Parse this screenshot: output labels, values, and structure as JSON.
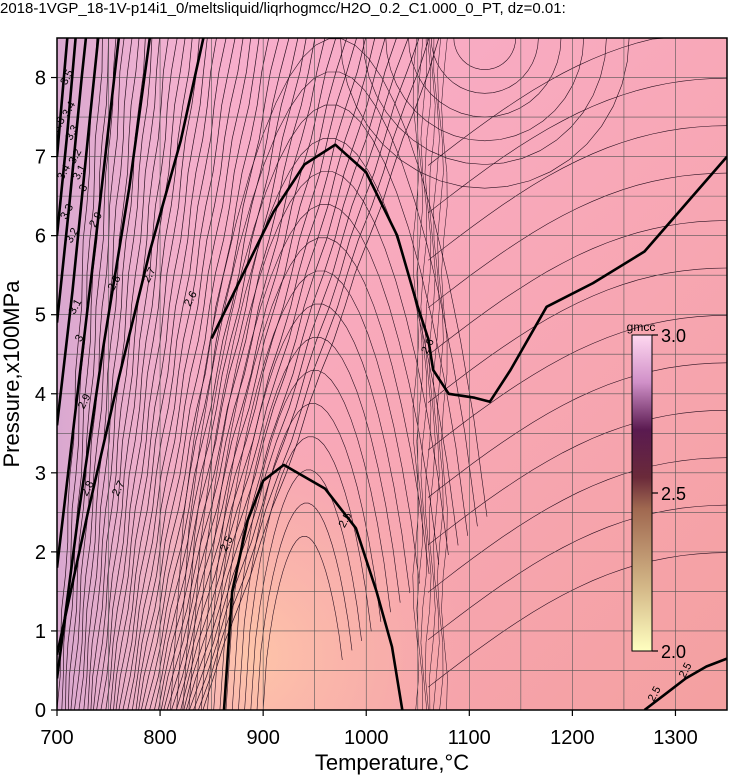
{
  "chart_data": {
    "type": "heatmap",
    "title": "2018-1VGP_18-1V-p14i1_0/meltsliquid/liqrhogmcc/H2O_0.2_C1.000_0_PT, dz=0.01:",
    "xlabel": "Temperature,°C",
    "ylabel": "Pressure,x100MPa",
    "xlim": [
      700,
      1350
    ],
    "ylim": [
      0,
      8.5
    ],
    "x_ticks": [
      700,
      800,
      900,
      1000,
      1100,
      1200,
      1300
    ],
    "y_ticks": [
      0,
      1,
      2,
      3,
      4,
      5,
      6,
      7,
      8
    ],
    "x_tick_labels": [
      "700",
      "800",
      "900",
      "1000",
      "1100",
      "1200",
      "1300"
    ],
    "y_tick_labels": [
      "0",
      "1",
      "2",
      "3",
      "4",
      "5",
      "6",
      "7",
      "8"
    ],
    "grid": true,
    "contour_interval": 0.01,
    "colorbar": {
      "label": "gmcc",
      "min": 2.0,
      "max": 3.0,
      "ticks": [
        2.0,
        2.5,
        3.0
      ],
      "tick_labels": [
        "2.0",
        "2.5",
        "3.0"
      ],
      "colors": [
        "#ffffc0",
        "#b08a60",
        "#5a1a30",
        "#ffc0e8"
      ]
    },
    "bold_contours": [
      {
        "level": 2.5,
        "label": "2.5",
        "points": [
          [
            862,
            0
          ],
          [
            870,
            1.5
          ],
          [
            885,
            2.4
          ],
          [
            900,
            2.9
          ],
          [
            920,
            3.1
          ],
          [
            960,
            2.8
          ],
          [
            990,
            2.3
          ],
          [
            1010,
            1.5
          ],
          [
            1025,
            0.8
          ],
          [
            1035,
            0
          ]
        ]
      },
      {
        "level": 2.5,
        "label": "2.5",
        "points": [
          [
            1270,
            0
          ],
          [
            1290,
            0.2
          ],
          [
            1310,
            0.4
          ],
          [
            1330,
            0.55
          ],
          [
            1350,
            0.65
          ]
        ]
      },
      {
        "level": 2.6,
        "label": "2.6",
        "points": [
          [
            850,
            4.7
          ],
          [
            880,
            5.5
          ],
          [
            910,
            6.3
          ],
          [
            940,
            6.9
          ],
          [
            970,
            7.15
          ],
          [
            1000,
            6.8
          ],
          [
            1030,
            6.0
          ],
          [
            1050,
            5.1
          ],
          [
            1060,
            4.7
          ],
          [
            1065,
            4.3
          ],
          [
            1080,
            4.0
          ],
          [
            1105,
            3.95
          ],
          [
            1120,
            3.9
          ],
          [
            1140,
            4.3
          ],
          [
            1175,
            5.1
          ],
          [
            1220,
            5.4
          ],
          [
            1270,
            5.8
          ],
          [
            1310,
            6.4
          ],
          [
            1350,
            7.0
          ]
        ]
      },
      {
        "level": 2.7,
        "label": "2.7",
        "points": [
          [
            700,
            0.7
          ],
          [
            730,
            2.5
          ],
          [
            760,
            4.2
          ],
          [
            790,
            5.8
          ],
          [
            820,
            7.2
          ],
          [
            842,
            8.5
          ]
        ]
      },
      {
        "level": 2.8,
        "label": "2.8",
        "points": [
          [
            700,
            0.4
          ],
          [
            720,
            2.4
          ],
          [
            745,
            4.6
          ],
          [
            770,
            6.6
          ],
          [
            790,
            8.5
          ]
        ]
      },
      {
        "level": 2.9,
        "label": "2.9",
        "points": [
          [
            700,
            1.8
          ],
          [
            718,
            3.8
          ],
          [
            738,
            6.0
          ],
          [
            760,
            8.5
          ]
        ]
      },
      {
        "level": 3.0,
        "label": "3",
        "points": [
          [
            700,
            3.6
          ],
          [
            715,
            5.3
          ],
          [
            732,
            7.5
          ],
          [
            740,
            8.5
          ]
        ]
      },
      {
        "level": 3.1,
        "label": "3.1",
        "points": [
          [
            700,
            4.9
          ],
          [
            712,
            6.4
          ],
          [
            724,
            8.0
          ],
          [
            728,
            8.5
          ]
        ]
      },
      {
        "level": 3.2,
        "label": "3.2",
        "points": [
          [
            700,
            6.0
          ],
          [
            710,
            7.3
          ],
          [
            718,
            8.5
          ]
        ]
      },
      {
        "level": 3.3,
        "label": "3.3",
        "points": [
          [
            700,
            7.0
          ],
          [
            706,
            7.9
          ],
          [
            710,
            8.5
          ]
        ]
      }
    ],
    "contour_labels": [
      {
        "text": "3.5",
        "x": 710,
        "y": 8.0
      },
      {
        "text": "3.5",
        "x": 702,
        "y": 7.4
      },
      {
        "text": "3.4",
        "x": 712,
        "y": 7.6
      },
      {
        "text": "3.3",
        "x": 715,
        "y": 7.3
      },
      {
        "text": "3.2",
        "x": 718,
        "y": 7.0
      },
      {
        "text": "3.1",
        "x": 722,
        "y": 6.8
      },
      {
        "text": "3",
        "x": 726,
        "y": 6.6
      },
      {
        "text": "3.4",
        "x": 707,
        "y": 6.8
      },
      {
        "text": "3.3",
        "x": 710,
        "y": 6.3
      },
      {
        "text": "3.2",
        "x": 715,
        "y": 6.0
      },
      {
        "text": "3.1",
        "x": 718,
        "y": 5.1
      },
      {
        "text": "3",
        "x": 722,
        "y": 4.7
      },
      {
        "text": "2.9",
        "x": 738,
        "y": 6.2
      },
      {
        "text": "2.8",
        "x": 756,
        "y": 5.4
      },
      {
        "text": "2.7",
        "x": 790,
        "y": 5.5
      },
      {
        "text": "2.9",
        "x": 727,
        "y": 3.9
      },
      {
        "text": "2.8",
        "x": 730,
        "y": 2.8
      },
      {
        "text": "2.7",
        "x": 760,
        "y": 2.8
      },
      {
        "text": "2.6",
        "x": 830,
        "y": 5.2
      },
      {
        "text": "2.6",
        "x": 1060,
        "y": 4.6
      },
      {
        "text": "2.5",
        "x": 865,
        "y": 2.1
      },
      {
        "text": "2.5",
        "x": 980,
        "y": 2.4
      },
      {
        "text": "2.5",
        "x": 1280,
        "y": 0.2
      },
      {
        "text": "2.5",
        "x": 1310,
        "y": 0.5
      }
    ]
  }
}
